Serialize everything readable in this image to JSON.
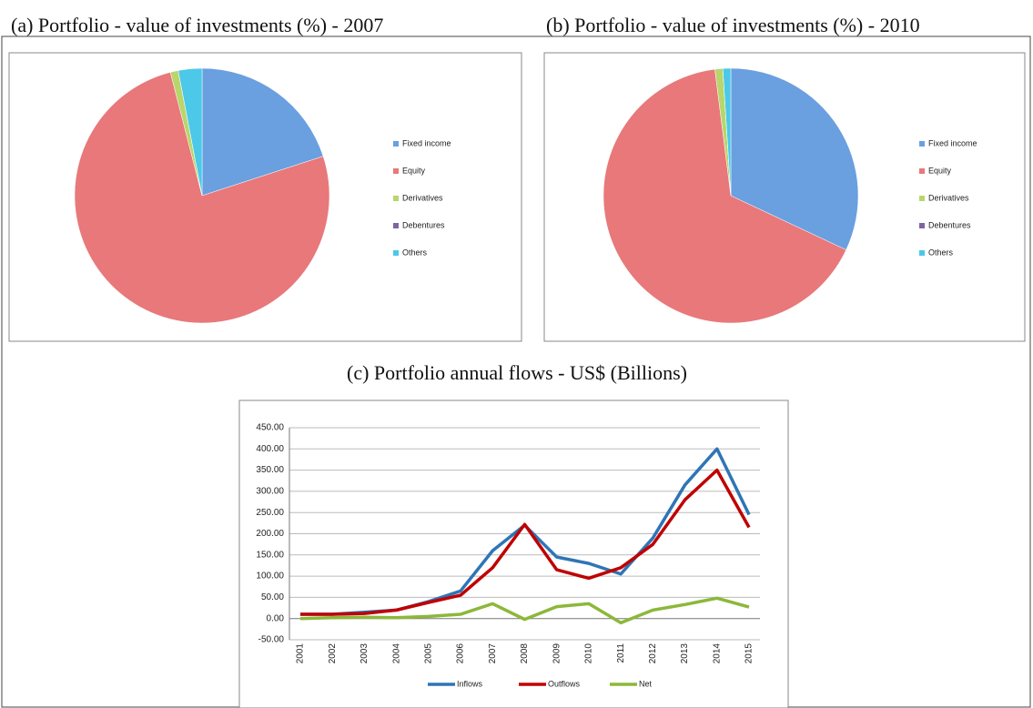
{
  "chart_data": [
    {
      "type": "pie",
      "title": "(a) Portfolio - value of investments (%) - 2007",
      "categories": [
        "Fixed income",
        "Equity",
        "Derivatives",
        "Debentures",
        "Others"
      ],
      "values": [
        20,
        76,
        1,
        0,
        3
      ],
      "colors": [
        "#6a9fe0",
        "#e8787a",
        "#b8d66c",
        "#8064a2",
        "#4cc8e8"
      ],
      "legend": "right"
    },
    {
      "type": "pie",
      "title": "(b) Portfolio - value of investments (%) - 2010",
      "categories": [
        "Fixed income",
        "Equity",
        "Derivatives",
        "Debentures",
        "Others"
      ],
      "values": [
        32,
        66,
        1,
        0,
        1
      ],
      "colors": [
        "#6a9fe0",
        "#e8787a",
        "#b8d66c",
        "#8064a2",
        "#4cc8e8"
      ],
      "legend": "right"
    },
    {
      "type": "line",
      "title": "(c) Portfolio annual flows - US$ (Billions)",
      "categories": [
        "2001",
        "2002",
        "2003",
        "2004",
        "2005",
        "2006",
        "2007",
        "2008",
        "2009",
        "2010",
        "2011",
        "2012",
        "2013",
        "2014",
        "2015"
      ],
      "series": [
        {
          "name": "Inflows",
          "color": "#2e75b6",
          "values": [
            10,
            10,
            15,
            20,
            40,
            65,
            160,
            220,
            145,
            130,
            105,
            190,
            315,
            400,
            245
          ]
        },
        {
          "name": "Outflows",
          "color": "#c00000",
          "values": [
            10,
            10,
            12,
            20,
            38,
            55,
            120,
            222,
            115,
            95,
            120,
            175,
            280,
            350,
            215
          ]
        },
        {
          "name": "Net",
          "color": "#8cb83a",
          "values": [
            0,
            2,
            3,
            2,
            5,
            10,
            35,
            -2,
            28,
            35,
            -10,
            20,
            33,
            48,
            27
          ]
        }
      ],
      "ylim": [
        -50,
        450
      ],
      "yticks": [
        {
          "value": -50,
          "label": "-50.00"
        },
        {
          "value": 0,
          "label": "0.00"
        },
        {
          "value": 50,
          "label": "50.00"
        },
        {
          "value": 100,
          "label": "100.00"
        },
        {
          "value": 150,
          "label": "150.00"
        },
        {
          "value": 200,
          "label": "200.00"
        },
        {
          "value": 250,
          "label": "250.00"
        },
        {
          "value": 300,
          "label": "300.00"
        },
        {
          "value": 350,
          "label": "350.00"
        },
        {
          "value": 400,
          "label": "400.00"
        },
        {
          "value": 450,
          "label": "450.00"
        }
      ],
      "grid": true,
      "legend": "bottom"
    }
  ]
}
